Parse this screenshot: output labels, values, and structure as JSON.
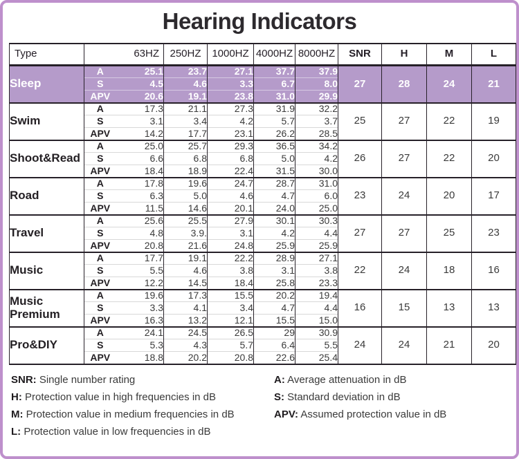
{
  "title": "Hearing Indicators",
  "colors": {
    "highlight_row": "#b59bca",
    "outer_border": "#be90cc",
    "table_line": "#262028"
  },
  "table": {
    "header": {
      "type": "Type",
      "freqs": [
        "63HZ",
        "250HZ",
        "1000HZ",
        "4000HZ",
        "8000HZ"
      ],
      "summary": [
        "SNR",
        "H",
        "M",
        "L"
      ]
    },
    "sub_labels": [
      "A",
      "S",
      "APV"
    ],
    "rows": [
      {
        "type": "Sleep",
        "highlight": true,
        "A": [
          "25.1",
          "23.7",
          "27.1",
          "37.7",
          "37.9"
        ],
        "S": [
          "4.5",
          "4.6",
          "3.3",
          "6.7",
          "8.0"
        ],
        "APV": [
          "20.6",
          "19.1",
          "23.8",
          "31.0",
          "29.9"
        ],
        "SNR": "27",
        "H": "28",
        "M": "24",
        "L": "21"
      },
      {
        "type": "Swim",
        "highlight": false,
        "A": [
          "17.3",
          "21.1",
          "27.3",
          "31.9",
          "32.2"
        ],
        "S": [
          "3.1",
          "3.4",
          "4.2",
          "5.7",
          "3.7"
        ],
        "APV": [
          "14.2",
          "17.7",
          "23.1",
          "26.2",
          "28.5"
        ],
        "SNR": "25",
        "H": "27",
        "M": "22",
        "L": "19"
      },
      {
        "type": "Shoot&Read",
        "highlight": false,
        "A": [
          "25.0",
          "25.7",
          "29.3",
          "36.5",
          "34.2"
        ],
        "S": [
          "6.6",
          "6.8",
          "6.8",
          "5.0",
          "4.2"
        ],
        "APV": [
          "18.4",
          "18.9",
          "22.4",
          "31.5",
          "30.0"
        ],
        "SNR": "26",
        "H": "27",
        "M": "22",
        "L": "20"
      },
      {
        "type": "Road",
        "highlight": false,
        "A": [
          "17.8",
          "19.6",
          "24.7",
          "28.7",
          "31.0"
        ],
        "S": [
          "6.3",
          "5.0",
          "4.6",
          "4.7",
          "6.0"
        ],
        "APV": [
          "11.5",
          "14.6",
          "20.1",
          "24.0",
          "25.0"
        ],
        "SNR": "23",
        "H": "24",
        "M": "20",
        "L": "17"
      },
      {
        "type": "Travel",
        "highlight": false,
        "A": [
          "25.6",
          "25.5",
          "27.9",
          "30.1",
          "30.3"
        ],
        "S": [
          "4.8",
          "3.9.",
          "3.1",
          "4.2",
          "4.4"
        ],
        "APV": [
          "20.8",
          "21.6",
          "24.8",
          "25.9",
          "25.9"
        ],
        "SNR": "27",
        "H": "27",
        "M": "25",
        "L": "23"
      },
      {
        "type": "Music",
        "highlight": false,
        "A": [
          "17.7",
          "19.1",
          "22.2",
          "28.9",
          "27.1"
        ],
        "S": [
          "5.5",
          "4.6",
          "3.8",
          "3.1",
          "3.8"
        ],
        "APV": [
          "12.2",
          "14.5",
          "18.4",
          "25.8",
          "23.3"
        ],
        "SNR": "22",
        "H": "24",
        "M": "18",
        "L": "16"
      },
      {
        "type": "Music Premium",
        "highlight": false,
        "A": [
          "19.6",
          "17.3",
          "15.5",
          "20.2",
          "19.4"
        ],
        "S": [
          "3.3",
          "4.1",
          "3.4",
          "4.7",
          "4.4"
        ],
        "APV": [
          "16.3",
          "13.2",
          "12.1",
          "15.5",
          "15.0"
        ],
        "SNR": "16",
        "H": "15",
        "M": "13",
        "L": "13"
      },
      {
        "type": "Pro&DIY",
        "highlight": false,
        "A": [
          "24.1",
          "24.5",
          "26.5",
          "29",
          "30.9"
        ],
        "S": [
          "5.3",
          "4.3",
          "5.7",
          "6.4",
          "5.5"
        ],
        "APV": [
          "18.8",
          "20.2",
          "20.8",
          "22.6",
          "25.4"
        ],
        "SNR": "24",
        "H": "24",
        "M": "21",
        "L": "20"
      }
    ]
  },
  "legend": {
    "left": [
      {
        "term": "SNR:",
        "desc": "Single number rating"
      },
      {
        "term": "H:",
        "desc": "Protection value in high frequencies in dB"
      },
      {
        "term": "M:",
        "desc": "Protection value in medium frequencies in dB"
      },
      {
        "term": "L:",
        "desc": "Protection value in low frequencies in dB"
      }
    ],
    "right": [
      {
        "term": "A:",
        "desc": "Average attenuation in dB"
      },
      {
        "term": "S:",
        "desc": "Standard deviation in dB"
      },
      {
        "term": "APV:",
        "desc": "Assumed protection value in dB"
      }
    ]
  }
}
